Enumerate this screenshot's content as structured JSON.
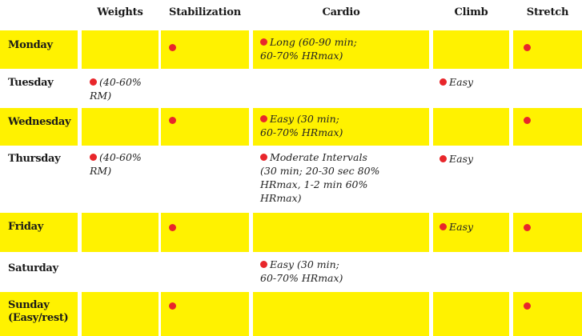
{
  "headers": {
    "weights": "Weights",
    "stabilization": "Stabilization",
    "cardio": "Cardio",
    "climb": "Climb",
    "stretch": "Stretch"
  },
  "colors": {
    "highlight": "#fff200",
    "dot": "#e8262b"
  },
  "rows": {
    "monday": {
      "day": "Monday",
      "cardio_line1": "Long (60-90 min;",
      "cardio_line2": "60-70% HRmax)"
    },
    "tuesday": {
      "day": "Tuesday",
      "weights_line1": "(40-60%",
      "weights_line2": "RM)",
      "climb": "Easy"
    },
    "wednesday": {
      "day": "Wednesday",
      "cardio_line1": "Easy (30 min;",
      "cardio_line2": "60-70% HRmax)"
    },
    "thursday": {
      "day": "Thursday",
      "weights_line1": "(40-60%",
      "weights_line2": "RM)",
      "cardio_line1": "Moderate Intervals",
      "cardio_line2": "(30 min; 20-30 sec 80%",
      "cardio_line3": "HRmax, 1-2 min 60%",
      "cardio_line4": "HRmax)",
      "climb": "Easy"
    },
    "friday": {
      "day": "Friday",
      "climb": "Easy"
    },
    "saturday": {
      "day": "Saturday",
      "cardio_line1": "Easy (30 min;",
      "cardio_line2": "60-70% HRmax)"
    },
    "sunday": {
      "day_line1": "Sunday",
      "day_line2": "(Easy/rest)"
    }
  }
}
